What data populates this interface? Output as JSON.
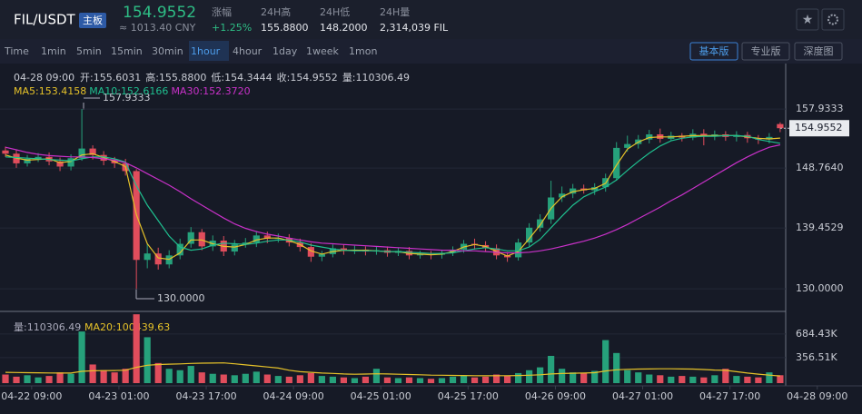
{
  "header": {
    "pair": "FIL/USDT",
    "badge": "主板",
    "price": "154.9552",
    "cny": "≈ 1013.40 CNY",
    "stats": [
      {
        "label": "涨幅",
        "value": "+1.25%"
      },
      {
        "label": "24H高",
        "value": "155.8800"
      },
      {
        "label": "24H低",
        "value": "148.2000"
      },
      {
        "label": "24H量",
        "value": "2,314,039 FIL"
      }
    ]
  },
  "toolbar": {
    "intervals": [
      "Time",
      "1min",
      "5min",
      "15min",
      "30min",
      "1hour",
      "4hour",
      "1day",
      "1week",
      "1mon"
    ],
    "active": "1hour",
    "views": [
      "基本版",
      "专业版",
      "深度图"
    ],
    "active_view": "基本版"
  },
  "info": {
    "time": "04-28 09:00",
    "items": [
      "开:155.6031",
      "高:155.8800",
      "低:154.3444",
      "收:154.9552",
      "量:110306.49"
    ]
  },
  "chart_data": {
    "type": "candlestick",
    "up_color": "#26a17b",
    "down_color": "#e04d5c",
    "xlim": [
      0,
      79
    ],
    "xticks": [
      {
        "value": 2.9,
        "label": "04-22 09:00"
      },
      {
        "value": 10.9,
        "label": "04-23 01:00"
      },
      {
        "value": 18.9,
        "label": "04-23 17:00"
      },
      {
        "value": 26.9,
        "label": "04-24 09:00"
      },
      {
        "value": 34.9,
        "label": "04-25 01:00"
      },
      {
        "value": 42.9,
        "label": "04-25 17:00"
      },
      {
        "value": 50.9,
        "label": "04-26 09:00"
      },
      {
        "value": 58.9,
        "label": "04-27 01:00"
      },
      {
        "value": 66.9,
        "label": "04-27 17:00"
      },
      {
        "value": 74.9,
        "label": "04-28 09:00"
      }
    ],
    "ylim": [
      126.5,
      165
    ],
    "yticks": [
      {
        "value": 130,
        "label": "130.0000"
      },
      139.4529,
      {
        "value": 148.764,
        "label": "148.7640"
      },
      157.9333
    ],
    "grid": true,
    "annotations": [
      "157.9333",
      "130.0000"
    ],
    "open": [
      151.5,
      151.0,
      149.5,
      150.2,
      150.5,
      149.8,
      149.0,
      150.3,
      151.8,
      150.8,
      149.9,
      149.5,
      148.3,
      134.5,
      135.5,
      133.8,
      135.2,
      137.0,
      138.8,
      136.6,
      137.5,
      135.8,
      136.9,
      137.2,
      138.3,
      137.8,
      137.9,
      137.2,
      136.5,
      135.0,
      135.4,
      136.3,
      135.9,
      136.1,
      135.8,
      136.0,
      135.6,
      135.9,
      135.2,
      135.4,
      135.3,
      135.6,
      136.1,
      137.0,
      136.8,
      136.3,
      135.2,
      134.9,
      137.2,
      139.5,
      140.8,
      144.2,
      144.8,
      145.6,
      145.3,
      145.8,
      147.2,
      151.9,
      152.5,
      153.2,
      154.0,
      153.3,
      153.8,
      153.5,
      154.1,
      153.7,
      154.0,
      153.6,
      153.9,
      153.4,
      153.2,
      155.6031
    ],
    "high": [
      152.1,
      151.6,
      150.8,
      151.1,
      151.2,
      150.4,
      150.9,
      157.9333,
      152.3,
      151.4,
      150.5,
      150.2,
      148.6,
      137.0,
      136.4,
      136.0,
      137.8,
      139.6,
      139.3,
      138.3,
      138.2,
      137.6,
      137.9,
      139.0,
      138.9,
      138.6,
      138.5,
      137.8,
      137.1,
      135.9,
      136.9,
      136.9,
      136.7,
      136.6,
      136.6,
      136.6,
      136.4,
      136.5,
      135.9,
      135.9,
      136.1,
      136.6,
      137.6,
      137.8,
      137.4,
      136.9,
      135.7,
      137.8,
      140.2,
      141.6,
      146.8,
      145.9,
      146.3,
      146.2,
      146.4,
      147.9,
      152.8,
      153.8,
      153.9,
      154.7,
      154.9,
      154.4,
      154.2,
      154.8,
      154.8,
      154.6,
      154.5,
      154.5,
      154.4,
      153.9,
      154.2,
      155.88
    ],
    "low": [
      150.5,
      148.8,
      149.0,
      149.7,
      149.2,
      148.3,
      148.4,
      149.9,
      150.1,
      149.2,
      148.8,
      147.6,
      130.0,
      133.2,
      133.0,
      133.2,
      134.6,
      136.4,
      136.0,
      135.9,
      135.1,
      135.2,
      136.4,
      136.5,
      137.1,
      137.2,
      136.6,
      135.8,
      134.2,
      134.3,
      134.9,
      135.3,
      135.4,
      135.2,
      135.3,
      135.0,
      135.1,
      134.6,
      134.7,
      134.6,
      134.7,
      135.1,
      135.6,
      136.1,
      135.8,
      134.6,
      134.2,
      134.4,
      136.6,
      138.9,
      140.1,
      143.5,
      144.1,
      144.8,
      144.6,
      145.1,
      146.8,
      151.3,
      151.8,
      152.6,
      152.7,
      153.1,
      152.9,
      153.1,
      152.3,
      153.1,
      153.0,
      152.9,
      152.7,
      152.5,
      152.6,
      154.3444
    ],
    "close": [
      151.0,
      149.5,
      150.2,
      150.5,
      149.8,
      149.0,
      150.3,
      151.8,
      150.8,
      149.9,
      149.5,
      148.3,
      134.5,
      135.5,
      133.8,
      135.2,
      137.0,
      138.8,
      136.6,
      137.5,
      135.8,
      136.9,
      137.2,
      138.3,
      137.8,
      137.9,
      137.2,
      136.5,
      135.0,
      135.4,
      136.3,
      135.9,
      136.1,
      135.8,
      136.0,
      135.6,
      135.9,
      135.2,
      135.4,
      135.3,
      135.6,
      136.1,
      137.0,
      136.8,
      136.3,
      135.2,
      134.9,
      137.2,
      139.5,
      140.8,
      144.2,
      144.8,
      145.6,
      145.3,
      145.8,
      147.2,
      151.9,
      152.5,
      153.2,
      154.0,
      153.3,
      153.8,
      153.5,
      154.1,
      153.7,
      154.0,
      153.6,
      153.9,
      153.4,
      153.2,
      153.6,
      154.9552
    ],
    "ma": [
      {
        "name": "MA5:153.4158",
        "color": "#e6c229",
        "values": [
          150.8,
          150.3,
          150.0,
          150.1,
          150.2,
          149.6,
          149.8,
          150.8,
          151.0,
          150.4,
          149.8,
          149.0,
          141.5,
          137.0,
          134.8,
          134.6,
          135.6,
          137.6,
          137.6,
          137.0,
          136.6,
          136.5,
          136.9,
          137.6,
          137.9,
          137.9,
          137.5,
          136.9,
          135.9,
          135.4,
          135.8,
          136.0,
          136.0,
          136.0,
          135.9,
          135.8,
          135.8,
          135.5,
          135.4,
          135.3,
          135.4,
          135.8,
          136.5,
          136.9,
          136.6,
          135.8,
          135.1,
          135.8,
          137.8,
          139.9,
          142.5,
          144.3,
          145.1,
          145.4,
          145.6,
          146.4,
          149.2,
          151.7,
          152.8,
          153.5,
          153.6,
          153.6,
          153.7,
          153.8,
          153.8,
          153.8,
          153.8,
          153.8,
          153.6,
          153.4,
          153.3,
          153.4158
        ]
      },
      {
        "name": "MA10:152.6166",
        "color": "#1fbf8f",
        "values": [
          150.5,
          150.4,
          150.3,
          150.2,
          150.1,
          150.0,
          149.9,
          150.2,
          150.5,
          150.5,
          150.2,
          149.7,
          146.0,
          143.0,
          140.6,
          138.2,
          136.5,
          136.0,
          136.2,
          136.8,
          137.1,
          137.0,
          136.9,
          137.1,
          137.4,
          137.6,
          137.6,
          137.3,
          136.8,
          136.5,
          136.2,
          136.0,
          135.9,
          135.9,
          135.9,
          135.8,
          135.8,
          135.7,
          135.6,
          135.5,
          135.5,
          135.6,
          135.9,
          136.2,
          136.4,
          136.2,
          135.9,
          135.9,
          136.5,
          137.7,
          139.5,
          141.3,
          143.0,
          144.3,
          145.1,
          145.8,
          146.9,
          148.4,
          149.8,
          151.1,
          152.2,
          153.0,
          153.4,
          153.6,
          153.7,
          153.7,
          153.8,
          153.8,
          153.7,
          153.2,
          152.9,
          152.6166
        ]
      },
      {
        "name": "MA30:152.3720",
        "color": "#c931c9",
        "values": [
          152.0,
          151.6,
          151.2,
          150.9,
          150.7,
          150.6,
          150.5,
          150.5,
          150.4,
          150.2,
          150.0,
          149.6,
          148.8,
          147.9,
          147.0,
          146.1,
          145.1,
          144.0,
          143.0,
          142.0,
          141.0,
          140.1,
          139.4,
          138.9,
          138.5,
          138.2,
          137.9,
          137.6,
          137.3,
          137.1,
          137.0,
          136.9,
          136.8,
          136.7,
          136.6,
          136.5,
          136.4,
          136.3,
          136.2,
          136.1,
          136.0,
          136.0,
          135.9,
          135.9,
          135.8,
          135.7,
          135.6,
          135.6,
          135.7,
          135.9,
          136.2,
          136.6,
          137.0,
          137.4,
          137.9,
          138.5,
          139.2,
          140.0,
          140.9,
          141.8,
          142.7,
          143.7,
          144.6,
          145.6,
          146.6,
          147.6,
          148.6,
          149.6,
          150.5,
          151.3,
          152.0,
          152.372
        ]
      }
    ],
    "volume": {
      "label": "量:110306.49",
      "ylim": [
        0,
        1000000
      ],
      "yticks": [
        {
          "value": 684430,
          "label": "684.43K"
        },
        {
          "value": 356510,
          "label": "356.51K"
        }
      ],
      "values": [
        120000,
        90000,
        110000,
        80000,
        100000,
        150000,
        130000,
        720000,
        260000,
        180000,
        150000,
        200000,
        960000,
        640000,
        280000,
        200000,
        180000,
        240000,
        150000,
        130000,
        120000,
        110000,
        130000,
        160000,
        120000,
        100000,
        90000,
        110000,
        140000,
        100000,
        90000,
        80000,
        70000,
        90000,
        200000,
        80000,
        70000,
        80000,
        70000,
        60000,
        70000,
        90000,
        110000,
        80000,
        90000,
        120000,
        100000,
        140000,
        180000,
        220000,
        380000,
        200000,
        150000,
        140000,
        170000,
        600000,
        420000,
        180000,
        150000,
        120000,
        110000,
        90000,
        100000,
        90000,
        80000,
        110000,
        200000,
        100000,
        90000,
        80000,
        150000,
        110306.49
      ],
      "ma": {
        "name": "MA20:100439.63",
        "color": "#e6c229",
        "values": [
          150000,
          148000,
          146000,
          144000,
          142000,
          141000,
          140000,
          165000,
          172000,
          175000,
          176000,
          180000,
          220000,
          250000,
          260000,
          265000,
          268000,
          275000,
          278000,
          280000,
          282000,
          270000,
          255000,
          240000,
          225000,
          210000,
          180000,
          160000,
          150000,
          140000,
          135000,
          128000,
          124000,
          126000,
          130000,
          128000,
          124000,
          120000,
          116000,
          112000,
          110000,
          108000,
          106000,
          104000,
          103000,
          104000,
          104000,
          106000,
          110000,
          116000,
          128000,
          134000,
          138000,
          141000,
          146000,
          170000,
          186000,
          192000,
          196000,
          198000,
          200000,
          200000,
          198000,
          196000,
          190000,
          182000,
          178000,
          160000,
          140000,
          125000,
          112000,
          100439.63
        ]
      }
    }
  }
}
